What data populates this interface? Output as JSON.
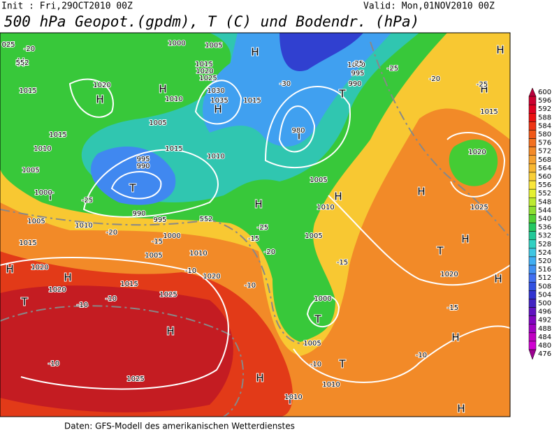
{
  "header": {
    "init": "Init : Fri,29OCT2010 00Z",
    "valid": "Valid: Mon,01NOV2010 00Z",
    "title": "500 hPa Geopot.(gpdm), T (C) und Bodendr. (hPa)"
  },
  "footer": "Daten: GFS-Modell des amerikanischen Wetterdienstes",
  "colorbar": {
    "labels": [
      "600",
      "596",
      "592",
      "588",
      "584",
      "580",
      "576",
      "572",
      "568",
      "564",
      "560",
      "556",
      "552",
      "548",
      "544",
      "540",
      "536",
      "532",
      "528",
      "524",
      "520",
      "516",
      "512",
      "508",
      "504",
      "500",
      "496",
      "492",
      "488",
      "484",
      "480",
      "476"
    ],
    "colors": [
      "#b8003c",
      "#cc0030",
      "#de0020",
      "#ea1010",
      "#ee3414",
      "#f05818",
      "#f27020",
      "#f38a28",
      "#f5a230",
      "#f8b832",
      "#f9cf38",
      "#f9e63a",
      "#e4f032",
      "#bcea30",
      "#8ede30",
      "#52d034",
      "#24c862",
      "#22c898",
      "#30d0c2",
      "#3ec6e2",
      "#40aef2",
      "#4090f2",
      "#406ef0",
      "#3050e0",
      "#3032d0",
      "#4222c2",
      "#6012c0",
      "#8004c0",
      "#a000c2",
      "#c000c2",
      "#d000d2",
      "#9c0090"
    ]
  },
  "map_labels": [
    "H",
    "H",
    "H",
    "H",
    "H",
    "H",
    "H",
    "T",
    "T",
    "T",
    "T",
    "H",
    "H",
    "H",
    "H",
    "T",
    "H",
    "H",
    "T",
    "H",
    "T",
    "T",
    "H",
    "T",
    "H",
    "H",
    "H",
    "1015",
    "1020",
    "1015",
    "1010",
    "1005",
    "1000",
    "1005",
    "1010",
    "1015",
    "1020",
    "1020",
    "1015",
    "1025",
    "1020",
    "1010",
    "1005",
    "1000",
    "995",
    "990",
    "995",
    "990",
    "1010",
    "1005",
    "1015",
    "1010",
    "1000",
    "1005",
    "1015",
    "1020",
    "1025",
    "1030",
    "1035",
    "1015",
    "1000",
    "995",
    "990",
    "980",
    "1005",
    "1010",
    "1005",
    "1000",
    "1005",
    "1010",
    "1010",
    "1020",
    "1025",
    "1020",
    "1015",
    "1025",
    "-20",
    "-25",
    "-20",
    "-15",
    "-10",
    "-10",
    "-10",
    "-10",
    "-10",
    "-15",
    "-20",
    "-25",
    "-15",
    "-10",
    "-10",
    "-15",
    "-20",
    "-25",
    "-25",
    "-25",
    "-30",
    "552",
    "552",
    "025"
  ]
}
